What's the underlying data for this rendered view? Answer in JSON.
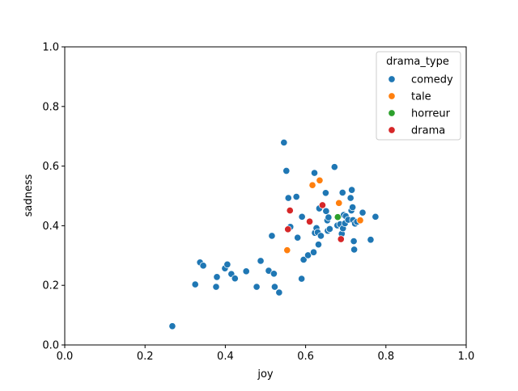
{
  "chart_data": {
    "type": "scatter",
    "xlabel": "joy",
    "ylabel": "sadness",
    "xlim": [
      0,
      1
    ],
    "ylim": [
      0,
      1
    ],
    "xticks": [
      "0.0",
      "0.2",
      "0.4",
      "0.6",
      "0.8",
      "1.0"
    ],
    "yticks": [
      "0.0",
      "0.2",
      "0.4",
      "0.6",
      "0.8",
      "1.0"
    ],
    "grid": false,
    "legend": {
      "title": "drama_type",
      "placement": "top-right"
    },
    "series": [
      {
        "name": "comedy",
        "color": "#1f77b4",
        "points": [
          [
            0.268,
            0.063
          ],
          [
            0.325,
            0.203
          ],
          [
            0.337,
            0.277
          ],
          [
            0.345,
            0.266
          ],
          [
            0.377,
            0.195
          ],
          [
            0.379,
            0.228
          ],
          [
            0.399,
            0.257
          ],
          [
            0.405,
            0.27
          ],
          [
            0.415,
            0.238
          ],
          [
            0.424,
            0.223
          ],
          [
            0.452,
            0.247
          ],
          [
            0.478,
            0.195
          ],
          [
            0.488,
            0.282
          ],
          [
            0.508,
            0.249
          ],
          [
            0.516,
            0.366
          ],
          [
            0.521,
            0.239
          ],
          [
            0.523,
            0.195
          ],
          [
            0.534,
            0.176
          ],
          [
            0.546,
            0.679
          ],
          [
            0.552,
            0.584
          ],
          [
            0.557,
            0.493
          ],
          [
            0.562,
            0.396
          ],
          [
            0.577,
            0.497
          ],
          [
            0.58,
            0.36
          ],
          [
            0.59,
            0.222
          ],
          [
            0.591,
            0.43
          ],
          [
            0.595,
            0.286
          ],
          [
            0.606,
            0.301
          ],
          [
            0.62,
            0.311
          ],
          [
            0.622,
            0.577
          ],
          [
            0.623,
            0.376
          ],
          [
            0.627,
            0.392
          ],
          [
            0.63,
            0.378
          ],
          [
            0.632,
            0.337
          ],
          [
            0.634,
            0.458
          ],
          [
            0.638,
            0.366
          ],
          [
            0.65,
            0.51
          ],
          [
            0.651,
            0.449
          ],
          [
            0.654,
            0.418
          ],
          [
            0.655,
            0.383
          ],
          [
            0.657,
            0.428
          ],
          [
            0.66,
            0.389
          ],
          [
            0.672,
            0.597
          ],
          [
            0.679,
            0.401
          ],
          [
            0.686,
            0.405
          ],
          [
            0.69,
            0.373
          ],
          [
            0.692,
            0.511
          ],
          [
            0.693,
            0.391
          ],
          [
            0.695,
            0.436
          ],
          [
            0.698,
            0.408
          ],
          [
            0.7,
            0.432
          ],
          [
            0.706,
            0.42
          ],
          [
            0.712,
            0.493
          ],
          [
            0.714,
            0.451
          ],
          [
            0.715,
            0.52
          ],
          [
            0.717,
            0.462
          ],
          [
            0.718,
            0.419
          ],
          [
            0.72,
            0.348
          ],
          [
            0.721,
            0.32
          ],
          [
            0.723,
            0.407
          ],
          [
            0.728,
            0.413
          ],
          [
            0.742,
            0.444
          ],
          [
            0.762,
            0.353
          ],
          [
            0.774,
            0.43
          ]
        ]
      },
      {
        "name": "tale",
        "color": "#ff7f0e",
        "points": [
          [
            0.554,
            0.318
          ],
          [
            0.617,
            0.536
          ],
          [
            0.635,
            0.552
          ],
          [
            0.683,
            0.476
          ],
          [
            0.736,
            0.418
          ]
        ]
      },
      {
        "name": "horreur",
        "color": "#2ca02c",
        "points": [
          [
            0.68,
            0.429
          ]
        ]
      },
      {
        "name": "drama",
        "color": "#d62728",
        "points": [
          [
            0.556,
            0.388
          ],
          [
            0.561,
            0.451
          ],
          [
            0.61,
            0.414
          ],
          [
            0.642,
            0.469
          ],
          [
            0.688,
            0.355
          ]
        ]
      }
    ]
  }
}
